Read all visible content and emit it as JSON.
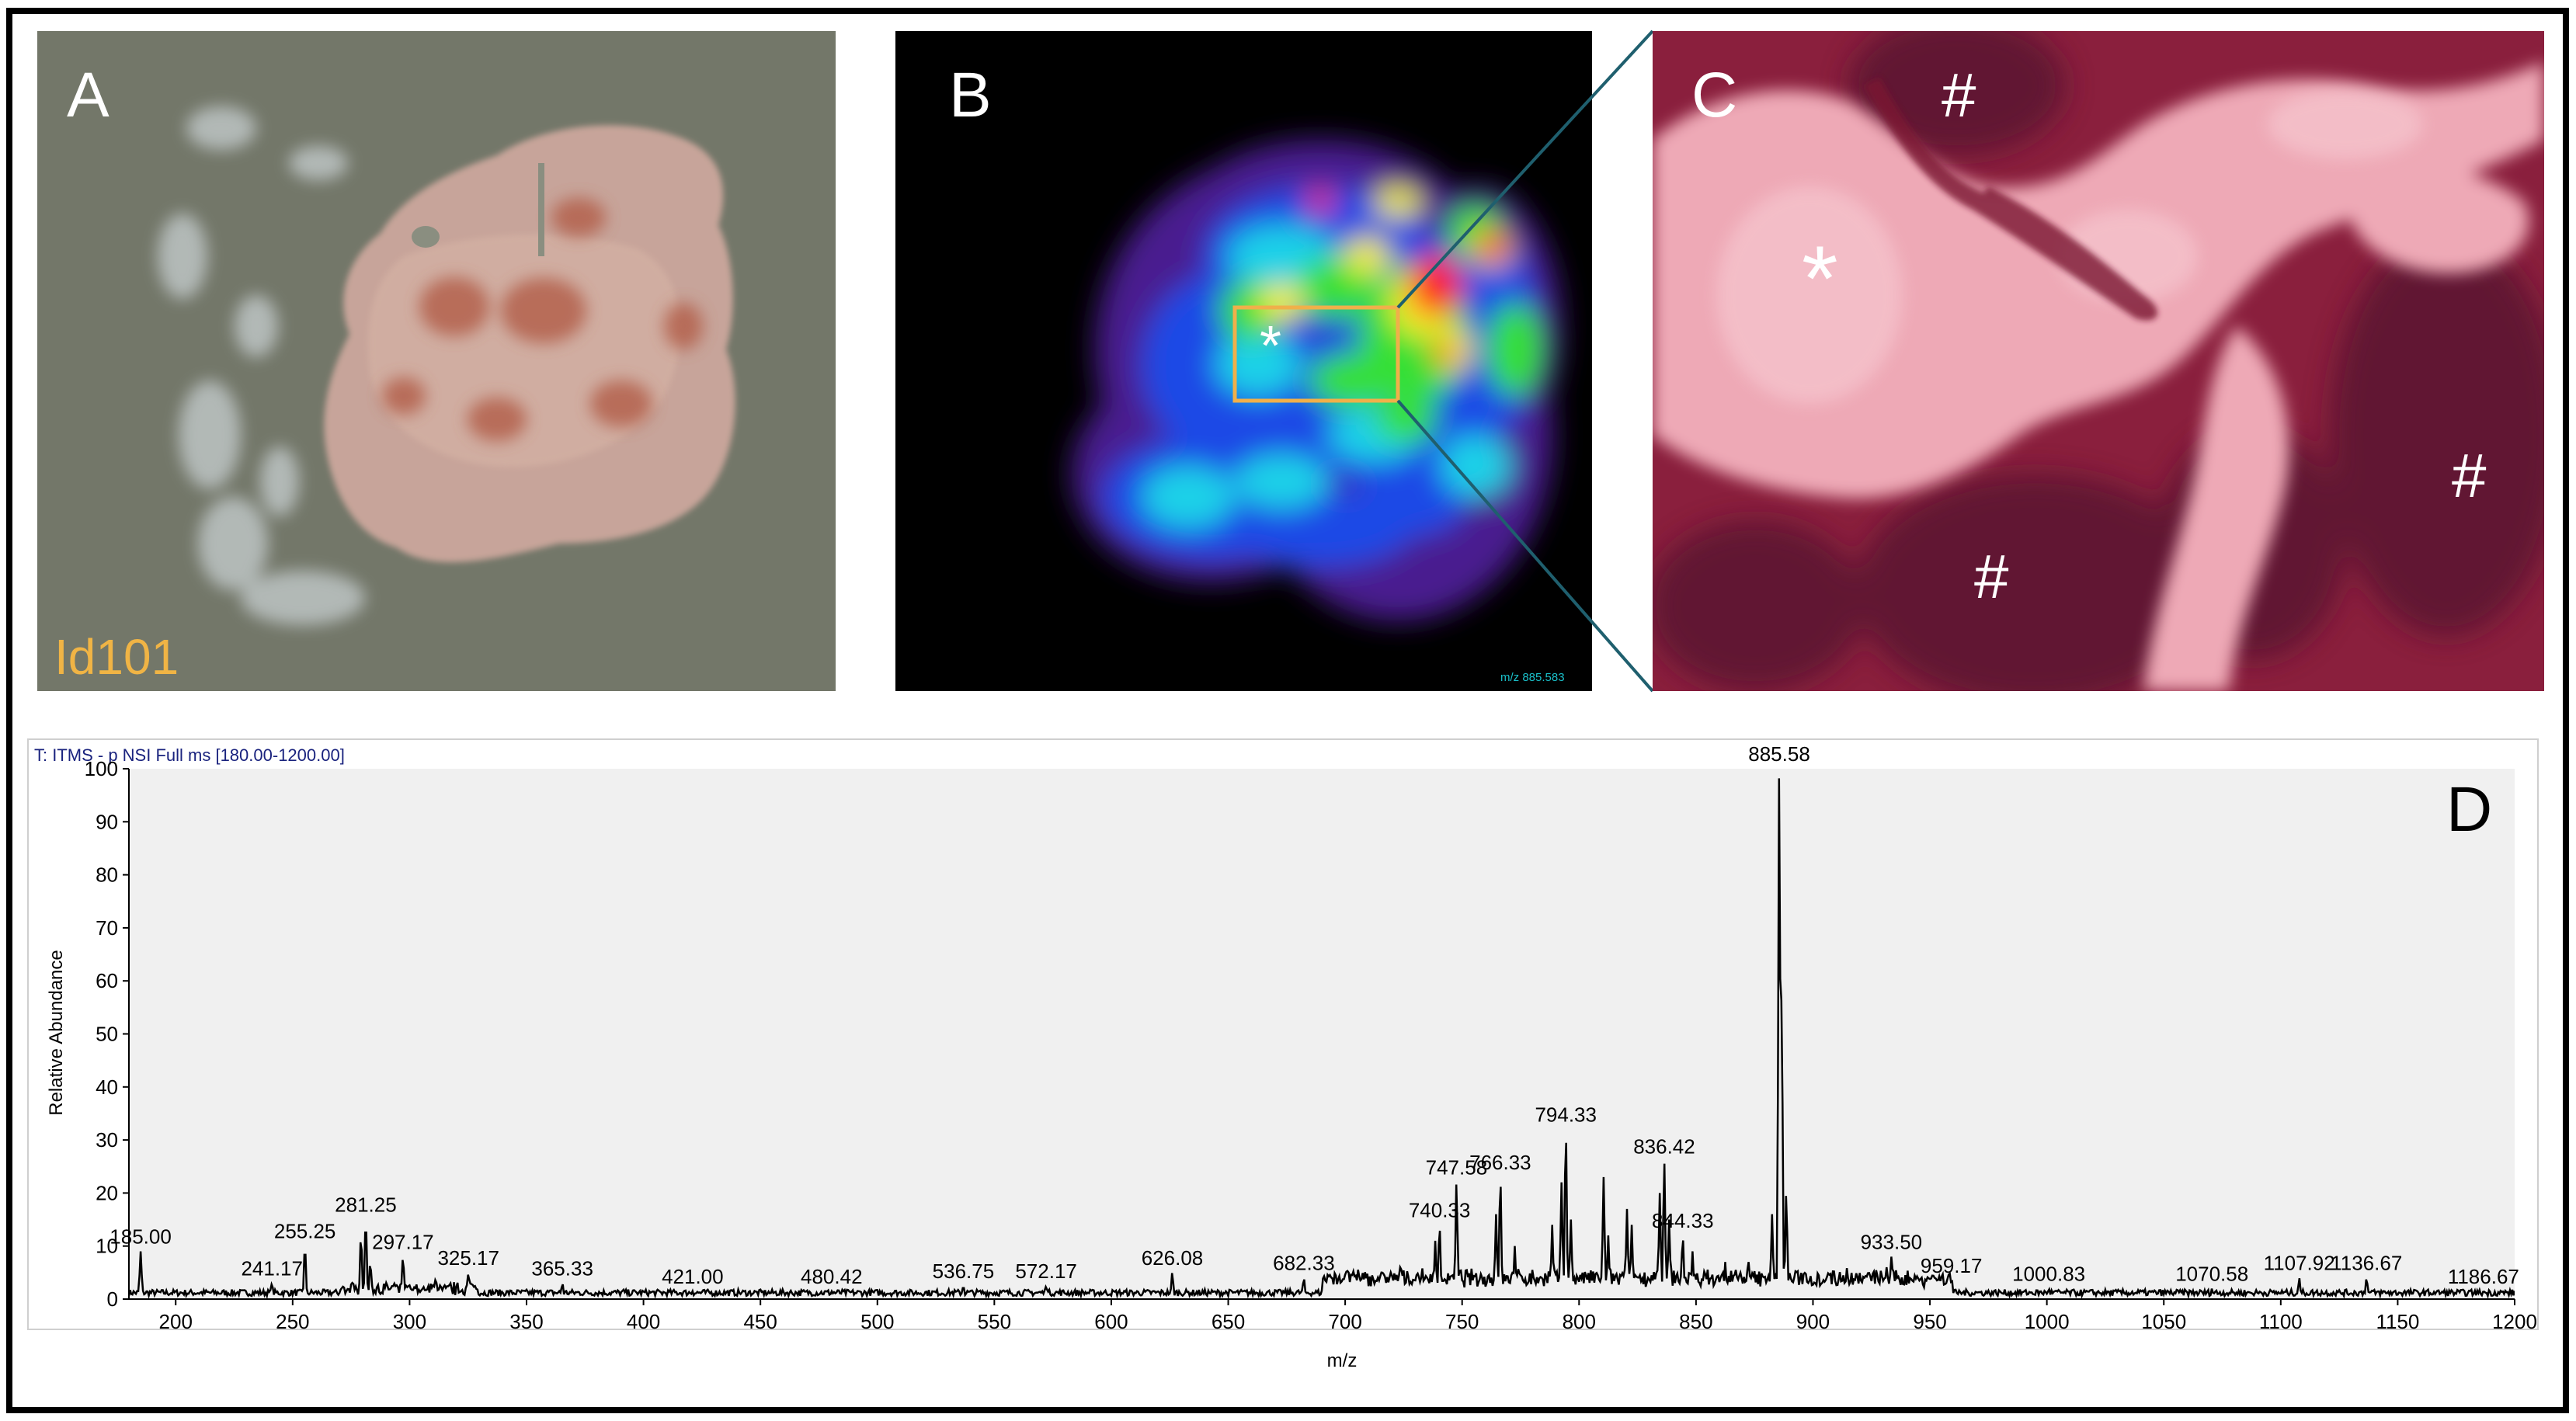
{
  "panels": {
    "a": {
      "letter": "A",
      "sample_label": "Id101"
    },
    "b": {
      "letter": "B",
      "marker": "*",
      "mz_label": "m/z 885.583"
    },
    "c": {
      "letter": "C",
      "marker_star": "*",
      "marker_hash": "#"
    },
    "d": {
      "letter": "D"
    }
  },
  "colors": {
    "frame": "#000000",
    "sample_label": "#f0b445",
    "roi_box": "#f0b04a",
    "zoom_lines": "#1f5f6e",
    "spectrum_line": "#000000",
    "chart_background": "#f0f0f0",
    "scan_header": "#1a237e"
  },
  "chart_data": {
    "type": "line",
    "title": "T: ITMS - p NSI Full ms [180.00-1200.00]",
    "xlabel": "m/z",
    "ylabel": "Relative Abundance",
    "xlim": [
      180,
      1200
    ],
    "ylim": [
      0,
      100
    ],
    "x_ticks": [
      200,
      250,
      300,
      350,
      400,
      450,
      500,
      550,
      600,
      650,
      700,
      750,
      800,
      850,
      900,
      950,
      1000,
      1050,
      1100,
      1150,
      1200
    ],
    "y_ticks": [
      0,
      10,
      20,
      30,
      40,
      50,
      60,
      70,
      80,
      90,
      100
    ],
    "grid": false,
    "labeled_peaks": [
      {
        "label": "185.00",
        "x": 185.0,
        "y": 9
      },
      {
        "label": "241.17",
        "x": 241.17,
        "y": 3
      },
      {
        "label": "255.25",
        "x": 255.25,
        "y": 10
      },
      {
        "label": "281.25",
        "x": 281.25,
        "y": 15
      },
      {
        "label": "297.17",
        "x": 297.17,
        "y": 8
      },
      {
        "label": "325.17",
        "x": 325.17,
        "y": 5
      },
      {
        "label": "365.33",
        "x": 365.33,
        "y": 3
      },
      {
        "label": "421.00",
        "x": 421.0,
        "y": 1.5
      },
      {
        "label": "480.42",
        "x": 480.42,
        "y": 1.5
      },
      {
        "label": "536.75",
        "x": 536.75,
        "y": 2.5
      },
      {
        "label": "572.17",
        "x": 572.17,
        "y": 2.5
      },
      {
        "label": "626.08",
        "x": 626.08,
        "y": 5
      },
      {
        "label": "682.33",
        "x": 682.33,
        "y": 4
      },
      {
        "label": "740.33",
        "x": 740.33,
        "y": 14
      },
      {
        "label": "747.58",
        "x": 747.58,
        "y": 22
      },
      {
        "label": "766.33",
        "x": 766.33,
        "y": 23
      },
      {
        "label": "794.33",
        "x": 794.33,
        "y": 32
      },
      {
        "label": "836.42",
        "x": 836.42,
        "y": 26
      },
      {
        "label": "844.33",
        "x": 844.33,
        "y": 12
      },
      {
        "label": "885.58",
        "x": 885.58,
        "y": 100
      },
      {
        "label": "933.50",
        "x": 933.5,
        "y": 8
      },
      {
        "label": "959.17",
        "x": 959.17,
        "y": 3.5
      },
      {
        "label": "1000.83",
        "x": 1000.83,
        "y": 2
      },
      {
        "label": "1070.58",
        "x": 1070.58,
        "y": 2
      },
      {
        "label": "1107.92",
        "x": 1107.92,
        "y": 4
      },
      {
        "label": "1136.67",
        "x": 1136.67,
        "y": 4
      },
      {
        "label": "1186.67",
        "x": 1186.67,
        "y": 1.5
      }
    ],
    "unlabeled_peaks": [
      {
        "x": 279.2,
        "y": 12
      },
      {
        "x": 283.2,
        "y": 7
      },
      {
        "x": 311.2,
        "y": 4
      },
      {
        "x": 327.2,
        "y": 3
      },
      {
        "x": 391.3,
        "y": 2
      },
      {
        "x": 701.5,
        "y": 5
      },
      {
        "x": 723.5,
        "y": 6
      },
      {
        "x": 738.5,
        "y": 11
      },
      {
        "x": 764.5,
        "y": 16
      },
      {
        "x": 772.5,
        "y": 10
      },
      {
        "x": 788.5,
        "y": 14
      },
      {
        "x": 792.5,
        "y": 22
      },
      {
        "x": 796.5,
        "y": 15
      },
      {
        "x": 810.5,
        "y": 23
      },
      {
        "x": 812.5,
        "y": 12
      },
      {
        "x": 820.5,
        "y": 17
      },
      {
        "x": 822.5,
        "y": 14
      },
      {
        "x": 834.5,
        "y": 20
      },
      {
        "x": 838.5,
        "y": 15
      },
      {
        "x": 848.5,
        "y": 9
      },
      {
        "x": 862.5,
        "y": 7
      },
      {
        "x": 872.5,
        "y": 7
      },
      {
        "x": 882.5,
        "y": 16
      },
      {
        "x": 886.6,
        "y": 58
      },
      {
        "x": 888.6,
        "y": 20
      },
      {
        "x": 906.6,
        "y": 5
      },
      {
        "x": 914.6,
        "y": 6
      },
      {
        "x": 918.6,
        "y": 5
      },
      {
        "x": 931.5,
        "y": 6
      },
      {
        "x": 950.6,
        "y": 4
      }
    ]
  }
}
